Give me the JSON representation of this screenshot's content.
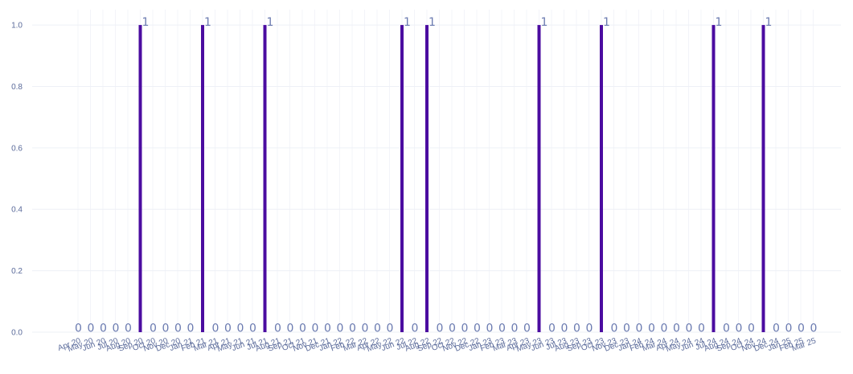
{
  "chart_data": {
    "type": "bar",
    "categories": [
      "Apr 20",
      "May 20",
      "Jun 20",
      "Jul 20",
      "Aug 20",
      "Sep 20",
      "Oct 20",
      "Nov 20",
      "Dec 20",
      "Jan 21",
      "Feb 21",
      "Mar 21",
      "Apr 21",
      "May 21",
      "Jun 21",
      "Jul 21",
      "Aug 21",
      "Sep 21",
      "Oct 21",
      "Nov 21",
      "Dec 21",
      "Jan 22",
      "Feb 22",
      "Mar 22",
      "Apr 22",
      "May 22",
      "Jun 22",
      "Jul 22",
      "Aug 22",
      "Sep 22",
      "Oct 22",
      "Nov 22",
      "Dec 22",
      "Jan 23",
      "Feb 23",
      "Mar 23",
      "Apr 23",
      "May 23",
      "Jun 23",
      "Jul 23",
      "Aug 23",
      "Sep 23",
      "Oct 23",
      "Nov 23",
      "Dec 23",
      "Jan 24",
      "Feb 24",
      "Mar 24",
      "Apr 24",
      "May 24",
      "Jun 24",
      "Jul 24",
      "Aug 24",
      "Sep 24",
      "Oct 24",
      "Nov 24",
      "Dec 24",
      "Jan 25",
      "Feb 25",
      "Mar 25"
    ],
    "values": [
      0,
      0,
      0,
      0,
      0,
      1,
      0,
      0,
      0,
      0,
      1,
      0,
      0,
      0,
      0,
      1,
      0,
      0,
      0,
      0,
      0,
      0,
      0,
      0,
      0,
      0,
      1,
      0,
      1,
      0,
      0,
      0,
      0,
      0,
      0,
      0,
      0,
      1,
      0,
      0,
      0,
      0,
      1,
      0,
      0,
      0,
      0,
      0,
      0,
      0,
      0,
      1,
      0,
      0,
      0,
      1,
      0,
      0,
      0,
      0
    ],
    "ylim": [
      0,
      1.05
    ],
    "yticks": [
      "0.0",
      "0.2",
      "0.4",
      "0.6",
      "0.8",
      "1.0"
    ],
    "title": "",
    "xlabel": "",
    "ylabel": "",
    "grid": true,
    "bar_color": "#4b0ca0",
    "label_color": "#6a7ab0",
    "tick_color": "#5a6a9a"
  }
}
